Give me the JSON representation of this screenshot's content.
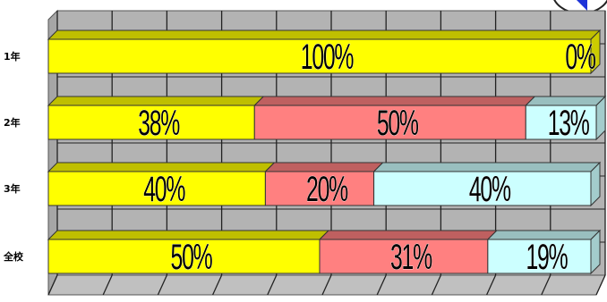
{
  "chart_data": {
    "type": "bar",
    "stacked": true,
    "orientation": "horizontal",
    "percent": true,
    "categories": [
      "1年",
      "2年",
      "3年",
      "全校"
    ],
    "series": [
      {
        "values": [
          100,
          38,
          40,
          50
        ],
        "color": "#ffff00"
      },
      {
        "values": [
          0,
          50,
          20,
          31
        ],
        "color": "#ff8080"
      },
      {
        "values": [
          0,
          13,
          40,
          19
        ],
        "color": "#ccffff"
      }
    ],
    "data_labels": [
      [
        "100%",
        "0%"
      ],
      [
        "38%",
        "50%",
        "13%"
      ],
      [
        "40%",
        "20%",
        "40%"
      ],
      [
        "50%",
        "31%",
        "19%"
      ]
    ],
    "xlim": [
      0,
      100
    ],
    "grid": true,
    "legend": "none"
  },
  "colors": {
    "wall": "#b3b3b3",
    "floor": "#c0c0c0",
    "grid": "#222222",
    "corner_arrow": "#1d33d8"
  },
  "icons": {
    "corner": "arrow-circle-icon"
  }
}
